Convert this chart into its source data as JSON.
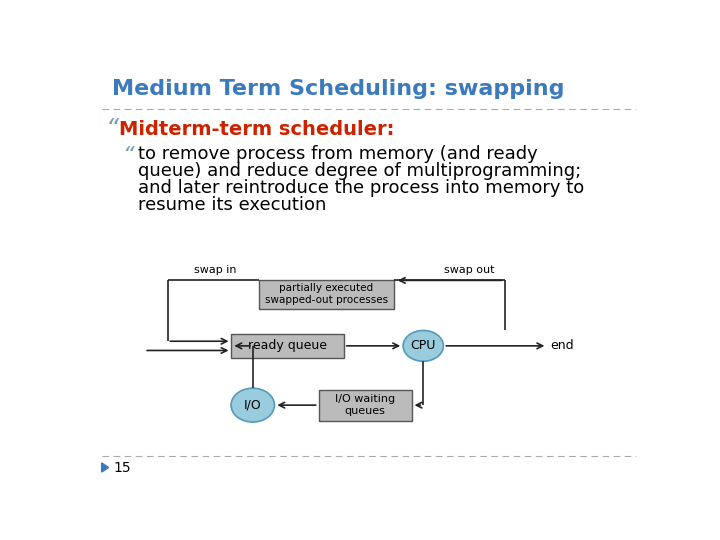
{
  "title": "Medium Term Scheduling: swapping",
  "title_color": "#3B7BBD",
  "bullet1": "Midterm-term scheduler:",
  "bullet1_color": "#CC2200",
  "bullet2_line1": "to remove process from memory (and ready",
  "bullet2_line2": "queue) and reduce degree of multiprogramming;",
  "bullet2_line3": "and later reintroduce the process into memory to",
  "bullet2_line4": "resume its execution",
  "bullet2_color": "#000000",
  "page_number": "15",
  "bg_color": "#FFFFFF",
  "sep_color": "#AAAAAA",
  "diagram": {
    "box_fill": "#BBBBBB",
    "box_edge": "#555555",
    "ellipse_fill": "#99CCDD",
    "ellipse_edge": "#5599BB",
    "arrow_color": "#222222",
    "text_color": "#000000",
    "swap_in_label": "swap in",
    "swap_out_label": "swap out",
    "partial_label": "partially executed\nswapped-out processes",
    "ready_queue_label": "ready queue",
    "cpu_label": "CPU",
    "io_label": "I/O",
    "io_waiting_label": "I/O waiting\nqueues",
    "end_label": "end"
  }
}
